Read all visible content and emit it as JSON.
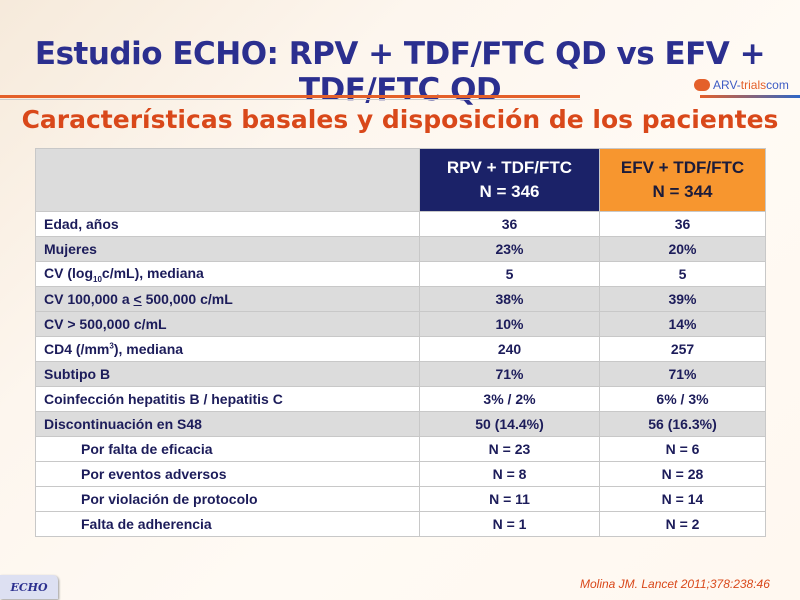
{
  "title": "Estudio ECHO: RPV + TDF/FTC QD vs EFV + TDF/FTC QD",
  "logo": {
    "brand": "ARV-",
    "brand2": "trials",
    "brand3": "com"
  },
  "subtitle": "Características basales y disposición de los pacientes",
  "table": {
    "header": [
      {
        "l1": "RPV + TDF/FTC",
        "l2": "N = 346"
      },
      {
        "l1": "EFV + TDF/FTC",
        "l2": "N = 344"
      }
    ],
    "rows": [
      {
        "label": "Edad, años",
        "a": "36",
        "b": "36"
      },
      {
        "label": "Mujeres",
        "a": "23%",
        "b": "20%"
      },
      {
        "label_pre": "CV (log",
        "label_sub": "10",
        "label_post": "c/mL), mediana",
        "a": "5",
        "b": "5"
      },
      {
        "label_pre": "CV 100,000 a ",
        "label_u": "<",
        "label_post": " 500,000 c/mL",
        "a": "38%",
        "b": "39%"
      },
      {
        "label": "CV > 500,000 c/mL",
        "a": "10%",
        "b": "14%"
      },
      {
        "label_pre": "CD4 (/mm",
        "label_sup": "3",
        "label_post": "), mediana",
        "a": "240",
        "b": "257"
      },
      {
        "label": "Subtipo B",
        "a": "71%",
        "b": "71%"
      },
      {
        "label": "Coinfección hepatitis B / hepatitis C",
        "a": "3% / 2%",
        "b": "6% / 3%"
      },
      {
        "label": "Discontinuación en S48",
        "a": "50 (14.4%)",
        "b": "56 (16.3%)"
      },
      {
        "label": "Por falta de eficacia",
        "a": "N = 23",
        "b": "N = 6"
      },
      {
        "label": "Por eventos adversos",
        "a": "N = 8",
        "b": "N = 28"
      },
      {
        "label": "Por violación de protocolo",
        "a": "N = 11",
        "b": "N = 14"
      },
      {
        "label": "Falta de adherencia",
        "a": "N = 1",
        "b": "N = 2"
      }
    ]
  },
  "badge": "ECHO",
  "citation": "Molina JM. Lancet 2011;378:238:46"
}
